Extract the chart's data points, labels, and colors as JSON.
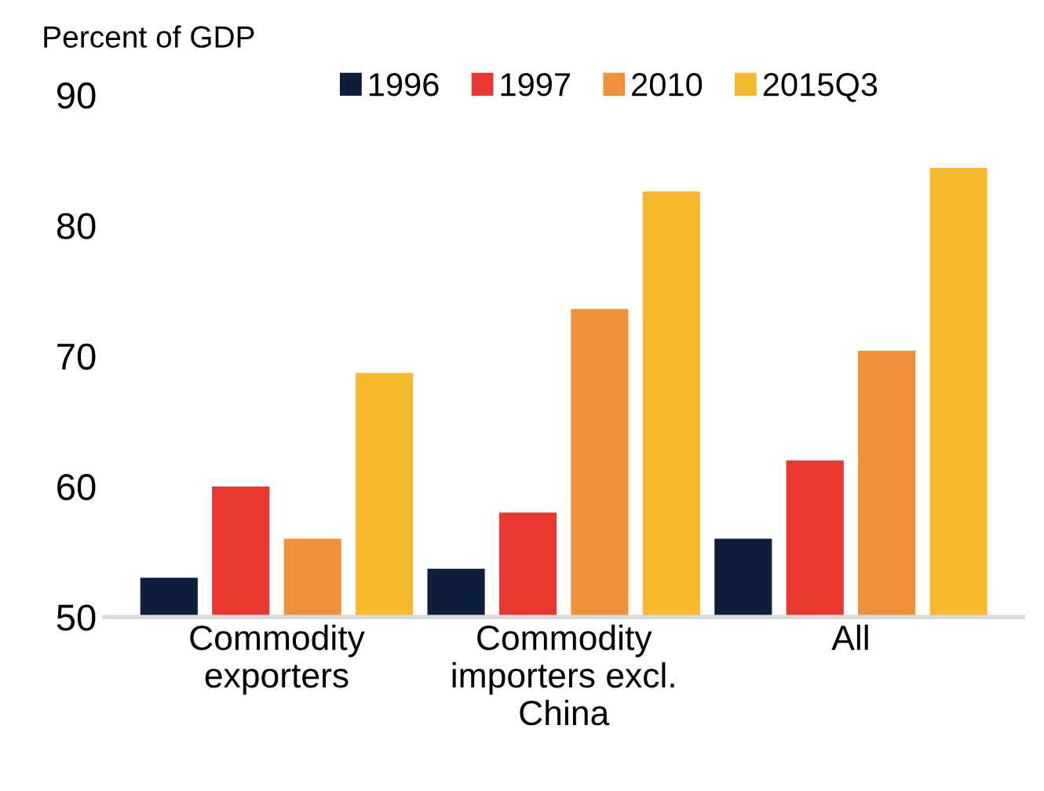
{
  "chart_data": {
    "type": "bar",
    "ylabel": "Percent of GDP",
    "categories": [
      "Commodity\nexporters",
      "Commodity\nimporters excl.\nChina",
      "All"
    ],
    "series": [
      {
        "name": "1996",
        "color": "#0d1f3c",
        "values": [
          53,
          53.7,
          56
        ]
      },
      {
        "name": "1997",
        "color": "#e8382f",
        "values": [
          60,
          58,
          62
        ]
      },
      {
        "name": "2010",
        "color": "#f0913a",
        "values": [
          56,
          73.6,
          70.4
        ]
      },
      {
        "name": "2015Q3",
        "color": "#f6b92b",
        "values": [
          68.7,
          82.6,
          84.4
        ]
      }
    ],
    "ylim": [
      50,
      90
    ],
    "yticks": [
      50,
      60,
      70,
      80,
      90
    ],
    "grid": false,
    "legend": "top"
  }
}
